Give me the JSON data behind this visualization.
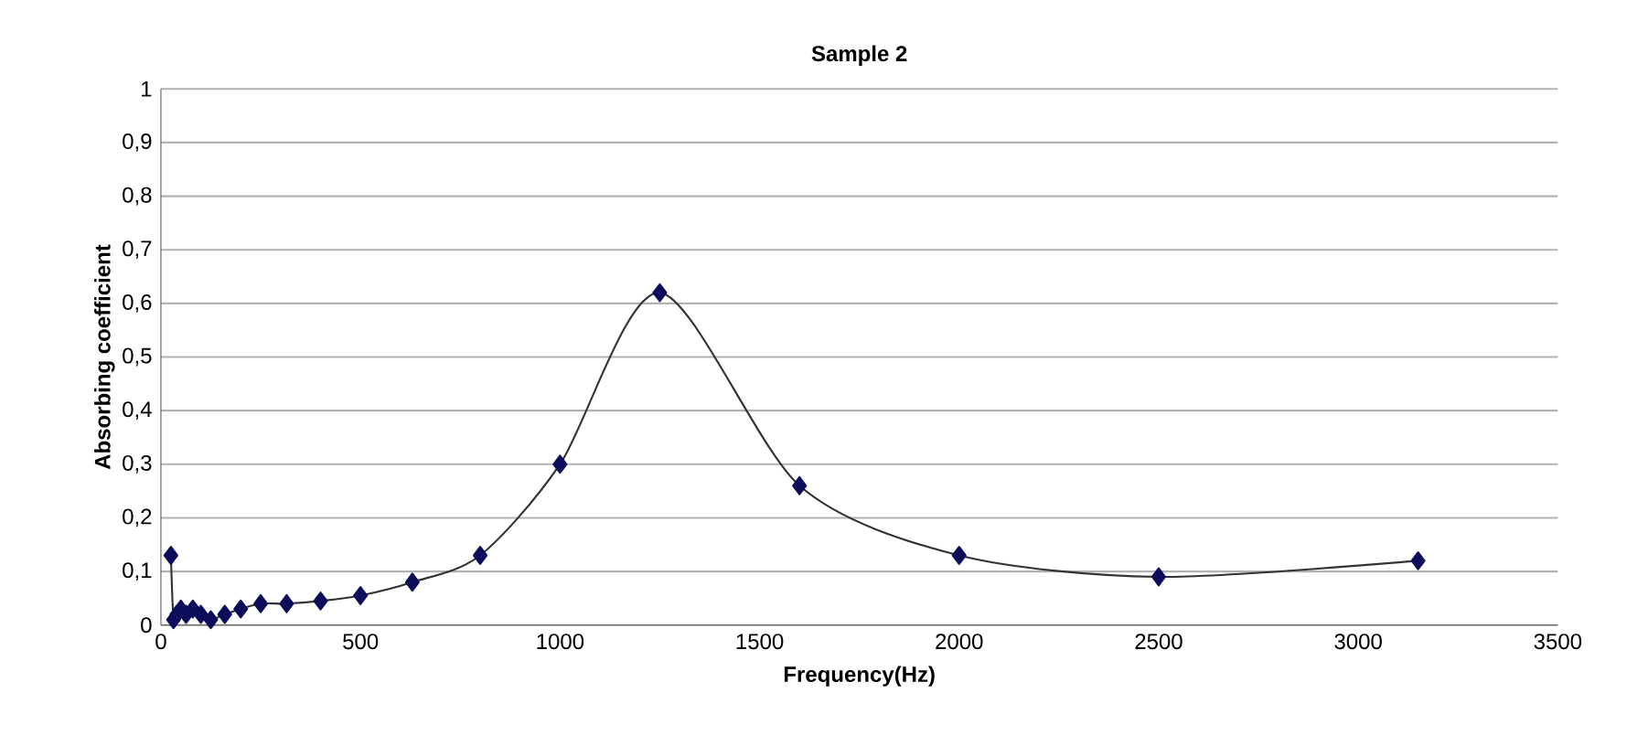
{
  "chart_data": {
    "type": "line",
    "title": "Sample 2",
    "xlabel": "Frequency(Hz)",
    "ylabel": "Absorbing coefficient",
    "x": [
      25,
      31.5,
      40,
      50,
      63,
      80,
      100,
      125,
      160,
      200,
      250,
      315,
      400,
      500,
      630,
      800,
      1000,
      1250,
      1600,
      2000,
      2500,
      3150
    ],
    "series": [
      {
        "color": "#0d0d5c",
        "values": [
          0.13,
          0.01,
          0.02,
          0.03,
          0.02,
          0.03,
          0.02,
          0.01,
          0.02,
          0.03,
          0.04,
          0.04,
          0.045,
          0.055,
          0.08,
          0.13,
          0.3,
          0.62,
          0.26,
          0.13,
          0.09,
          0.12
        ]
      }
    ],
    "xlim": [
      0,
      3500
    ],
    "xticks": [
      0,
      500,
      1000,
      1500,
      2000,
      2500,
      3000,
      3500
    ],
    "ylim": [
      0,
      1
    ],
    "yticks": [
      {
        "value": 0,
        "label": "0"
      },
      {
        "value": 0.1,
        "label": "0,1"
      },
      {
        "value": 0.2,
        "label": "0,2"
      },
      {
        "value": 0.3,
        "label": "0,3"
      },
      {
        "value": 0.4,
        "label": "0,4"
      },
      {
        "value": 0.5,
        "label": "0,5"
      },
      {
        "value": 0.6,
        "label": "0,6"
      },
      {
        "value": 0.7,
        "label": "0,7"
      },
      {
        "value": 0.8,
        "label": "0,8"
      },
      {
        "value": 0.9,
        "label": "0,9"
      },
      {
        "value": 1,
        "label": "1"
      }
    ],
    "grid": "y",
    "marker": "diamond",
    "line_style": "solid"
  }
}
